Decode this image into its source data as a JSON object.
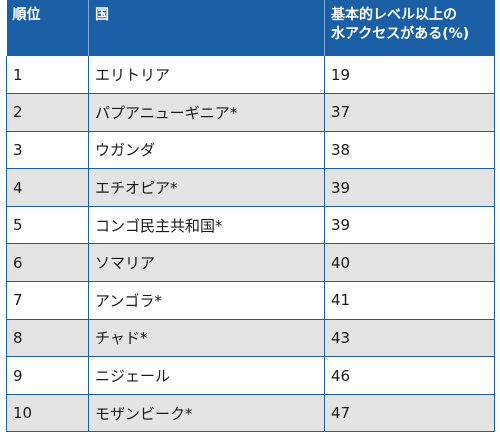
{
  "table": {
    "headers": {
      "rank": "順位",
      "country": "国",
      "access_line1": "基本的レベル以上の",
      "access_line2": "水アクセスがある(%)"
    },
    "rows": [
      {
        "rank": "1",
        "country": "エリトリア",
        "value": "19"
      },
      {
        "rank": "2",
        "country": "パプアニューギニア*",
        "value": "37"
      },
      {
        "rank": "3",
        "country": "ウガンダ",
        "value": "38"
      },
      {
        "rank": "4",
        "country": "エチオピア*",
        "value": "39"
      },
      {
        "rank": "5",
        "country": "コンゴ民主共和国*",
        "value": "39"
      },
      {
        "rank": "6",
        "country": "ソマリア",
        "value": "40"
      },
      {
        "rank": "7",
        "country": "アンゴラ*",
        "value": "41"
      },
      {
        "rank": "8",
        "country": "チャド*",
        "value": "43"
      },
      {
        "rank": "9",
        "country": "ニジェール",
        "value": "46"
      },
      {
        "rank": "10",
        "country": "モザンビーク*",
        "value": "47"
      }
    ]
  },
  "colors": {
    "header_bg": "#1b5fa6",
    "header_text": "#ffffff",
    "stripe": "#e3e3e3",
    "border": "#1b5fa6"
  }
}
